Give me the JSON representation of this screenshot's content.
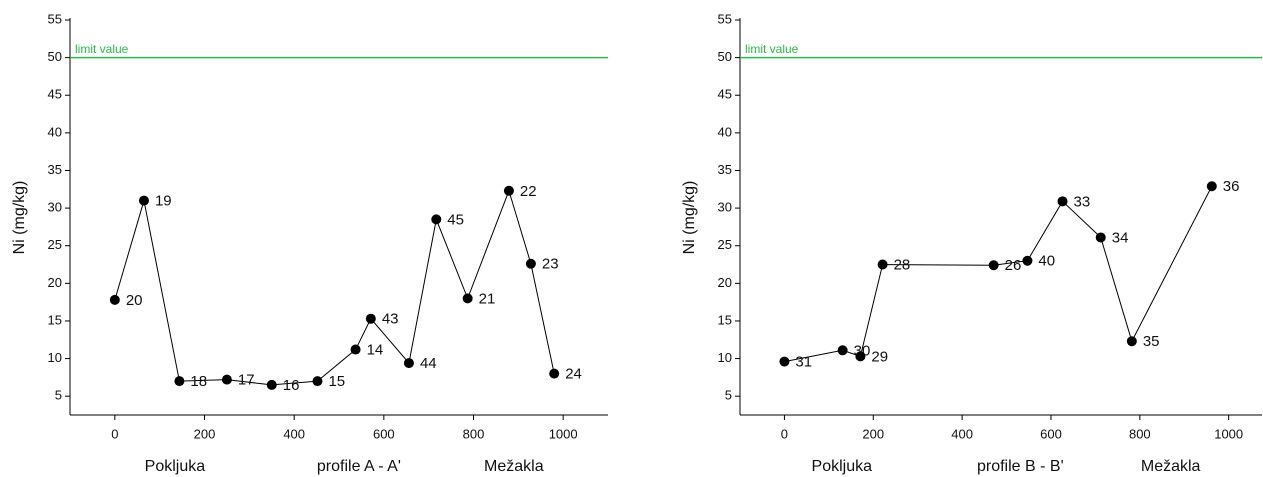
{
  "chart_data": [
    {
      "type": "line",
      "y_label": "Ni (mg/kg)",
      "x_annotations": [
        "Pokljuka",
        "profile A - A'",
        "Mežakla"
      ],
      "x": [
        0,
        65,
        144,
        250,
        350,
        452,
        537,
        571,
        656,
        717,
        787,
        879,
        928,
        980
      ],
      "values": [
        17.8,
        31.0,
        7.0,
        7.2,
        6.5,
        7.0,
        11.2,
        15.3,
        9.4,
        28.5,
        18.0,
        32.3,
        22.6,
        8.0
      ],
      "point_labels": [
        "20",
        "19",
        "18",
        "17",
        "16",
        "15",
        "14",
        "43",
        "44",
        "45",
        "21",
        "22",
        "23",
        "24"
      ],
      "color": "#000000",
      "limit": {
        "value": 50,
        "label": "limit value",
        "color": "#2db84d"
      },
      "xlim": [
        -100,
        1100
      ],
      "xticks": [
        0,
        200,
        400,
        600,
        800,
        1000
      ],
      "ylim": [
        2.5,
        55
      ],
      "yticks": [
        5,
        10,
        15,
        20,
        25,
        30,
        35,
        40,
        45,
        50,
        55
      ]
    },
    {
      "type": "line",
      "y_label": "Ni (mg/kg)",
      "x_annotations": [
        "Pokljuka",
        "profile B - B'",
        "Mežakla"
      ],
      "x": [
        0,
        131,
        171,
        221,
        471,
        547,
        626,
        712,
        782,
        962
      ],
      "values": [
        9.6,
        11.1,
        10.3,
        22.5,
        22.4,
        23.0,
        30.9,
        26.1,
        12.3,
        32.9
      ],
      "point_labels": [
        "31",
        "30",
        "29",
        "28",
        "26",
        "40",
        "33",
        "34",
        "35",
        "36"
      ],
      "color": "#000000",
      "limit": {
        "value": 50,
        "label": "limit value",
        "color": "#2db84d"
      },
      "xlim": [
        -100,
        1075
      ],
      "xticks": [
        0,
        200,
        400,
        600,
        800,
        1000
      ],
      "ylim": [
        2.5,
        55
      ],
      "yticks": [
        5,
        10,
        15,
        20,
        25,
        30,
        35,
        40,
        45,
        50,
        55
      ]
    }
  ]
}
